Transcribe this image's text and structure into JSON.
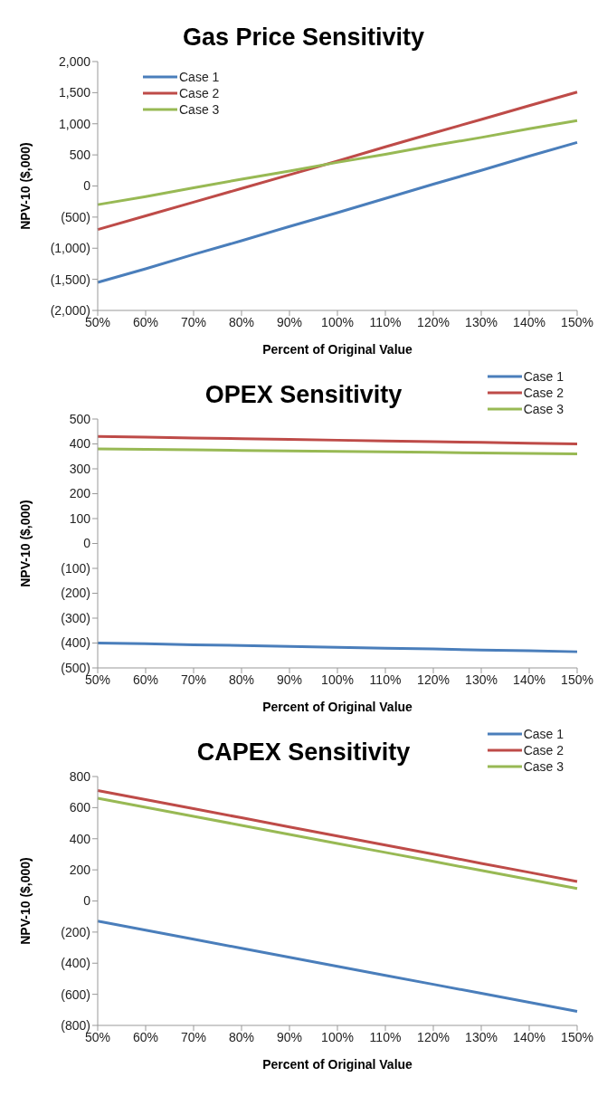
{
  "chart_data": [
    {
      "type": "line",
      "title": "Gas Price Sensitivity",
      "xlabel": "Percent of Original Value",
      "ylabel": "NPV-10 ($,000)",
      "categories": [
        "50%",
        "60%",
        "70%",
        "80%",
        "90%",
        "100%",
        "110%",
        "120%",
        "130%",
        "140%",
        "150%"
      ],
      "series": [
        {
          "name": "Case 1",
          "color": "#4a7ebb",
          "values": [
            -1550,
            -1330,
            -1100,
            -880,
            -650,
            -430,
            -200,
            30,
            250,
            480,
            700
          ]
        },
        {
          "name": "Case 2",
          "color": "#be4b48",
          "values": [
            -700,
            -480,
            -260,
            -40,
            180,
            400,
            630,
            850,
            1070,
            1290,
            1510
          ]
        },
        {
          "name": "Case 3",
          "color": "#98b954",
          "values": [
            -300,
            -170,
            -30,
            110,
            240,
            380,
            510,
            650,
            780,
            920,
            1050
          ]
        }
      ],
      "ylim": [
        -2000,
        2000
      ],
      "yticks": [
        {
          "value": -2000,
          "label": "(2,000)"
        },
        {
          "value": -1500,
          "label": "(1,500)"
        },
        {
          "value": -1000,
          "label": "(1,000)"
        },
        {
          "value": -500,
          "label": "(500)"
        },
        0,
        500,
        {
          "value": 1000,
          "label": "1,000"
        },
        {
          "value": 1500,
          "label": "1,500"
        },
        {
          "value": 2000,
          "label": "2,000"
        }
      ],
      "grid": false,
      "legend": "top left",
      "marker": "none",
      "line_style": "solid"
    },
    {
      "type": "line",
      "title": "OPEX Sensitivity",
      "xlabel": "Percent of Original Value",
      "ylabel": "NPV-10 ($,000)",
      "categories": [
        "50%",
        "60%",
        "70%",
        "80%",
        "90%",
        "100%",
        "110%",
        "120%",
        "130%",
        "140%",
        "150%"
      ],
      "series": [
        {
          "name": "Case 1",
          "color": "#4a7ebb",
          "values": [
            -400,
            -403,
            -407,
            -410,
            -414,
            -417,
            -421,
            -424,
            -428,
            -431,
            -435
          ]
        },
        {
          "name": "Case 2",
          "color": "#be4b48",
          "values": [
            430,
            427,
            424,
            421,
            418,
            415,
            412,
            409,
            406,
            403,
            400
          ]
        },
        {
          "name": "Case 3",
          "color": "#98b954",
          "values": [
            380,
            378,
            376,
            374,
            372,
            370,
            368,
            366,
            364,
            362,
            360
          ]
        }
      ],
      "ylim": [
        -500,
        500
      ],
      "yticks": [
        {
          "value": -500,
          "label": "(500)"
        },
        {
          "value": -400,
          "label": "(400)"
        },
        {
          "value": -300,
          "label": "(300)"
        },
        {
          "value": -200,
          "label": "(200)"
        },
        {
          "value": -100,
          "label": "(100)"
        },
        0,
        100,
        200,
        300,
        400,
        500
      ],
      "grid": false,
      "legend": "top right",
      "marker": "none",
      "line_style": "solid"
    },
    {
      "type": "line",
      "title": "CAPEX Sensitivity",
      "xlabel": "Percent of Original Value",
      "ylabel": "NPV-10 ($,000)",
      "categories": [
        "50%",
        "60%",
        "70%",
        "80%",
        "90%",
        "100%",
        "110%",
        "120%",
        "130%",
        "140%",
        "150%"
      ],
      "series": [
        {
          "name": "Case 1",
          "color": "#4a7ebb",
          "values": [
            -130,
            -188,
            -246,
            -304,
            -362,
            -420,
            -478,
            -536,
            -594,
            -652,
            -710
          ]
        },
        {
          "name": "Case 2",
          "color": "#be4b48",
          "values": [
            710,
            652,
            593,
            535,
            476,
            418,
            359,
            301,
            242,
            184,
            125
          ]
        },
        {
          "name": "Case 3",
          "color": "#98b954",
          "values": [
            660,
            602,
            544,
            486,
            428,
            370,
            312,
            254,
            196,
            138,
            80
          ]
        }
      ],
      "ylim": [
        -800,
        800
      ],
      "yticks": [
        {
          "value": -800,
          "label": "(800)"
        },
        {
          "value": -600,
          "label": "(600)"
        },
        {
          "value": -400,
          "label": "(400)"
        },
        {
          "value": -200,
          "label": "(200)"
        },
        0,
        200,
        400,
        600,
        800
      ],
      "grid": false,
      "legend": "top right",
      "marker": "none",
      "line_style": "solid"
    }
  ]
}
